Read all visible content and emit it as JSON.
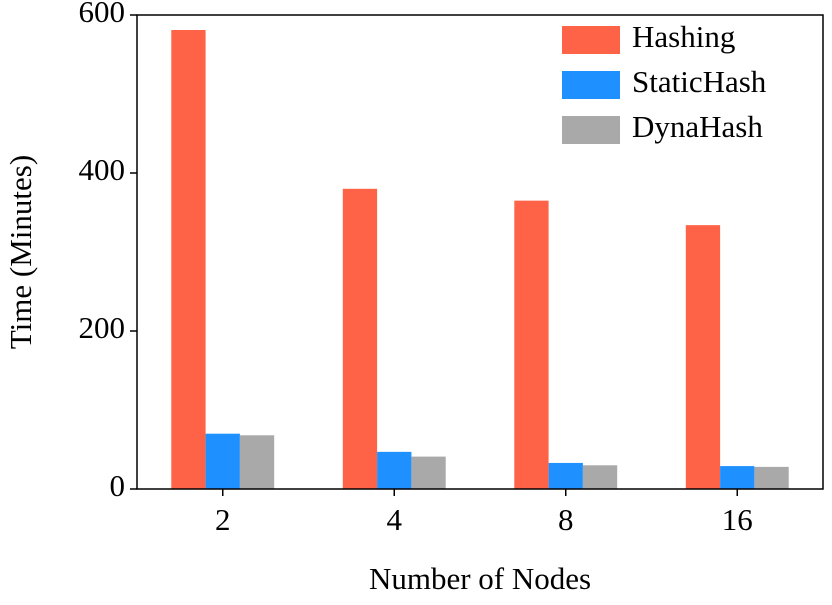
{
  "chart_data": {
    "type": "bar",
    "x_label": "Number of Nodes",
    "y_label": "Time (Minutes)",
    "categories": [
      "2",
      "4",
      "8",
      "16"
    ],
    "series": [
      {
        "name": "Hashing",
        "color": "#ff6347",
        "values": [
          581,
          380,
          365,
          334
        ]
      },
      {
        "name": "StaticHash",
        "color": "#1e90ff",
        "values": [
          70,
          47,
          33,
          29
        ]
      },
      {
        "name": "DynaHash",
        "color": "#a9a9a9",
        "values": [
          68,
          41,
          30,
          28
        ]
      }
    ],
    "ylim": [
      0,
      600
    ],
    "yticks": [
      0,
      200,
      400,
      600
    ],
    "grid": false,
    "legend": "upper right"
  }
}
